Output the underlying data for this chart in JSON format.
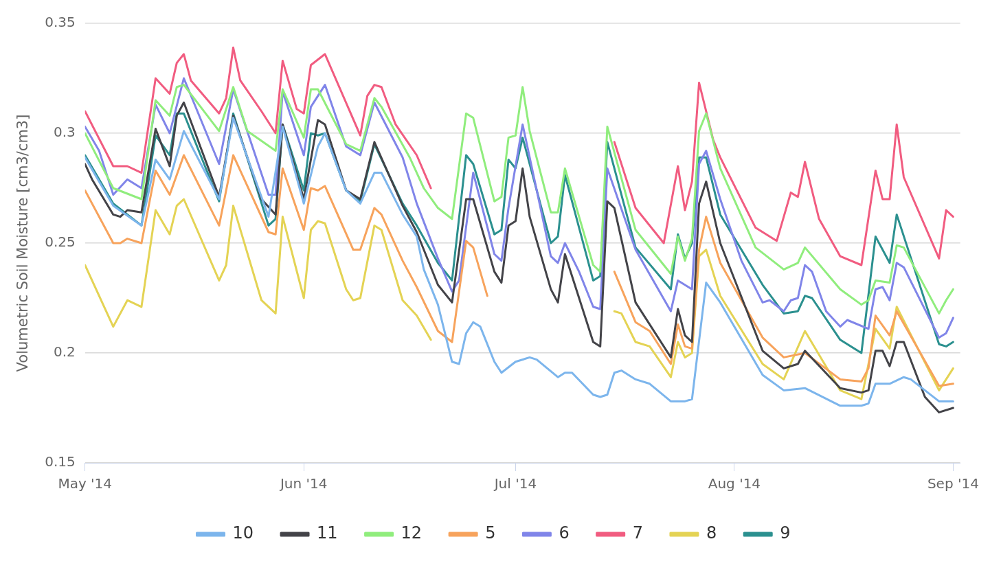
{
  "chart_data": {
    "type": "line",
    "ylabel": "Volumetric Soil Moisture [cm3/cm3]",
    "xlim": [
      "2014-05-01",
      "2014-09-02"
    ],
    "xticks": [
      {
        "value": "2014-05-01",
        "label": "May '14"
      },
      {
        "value": "2014-06-01",
        "label": "Jun '14"
      },
      {
        "value": "2014-07-01",
        "label": "Jul '14"
      },
      {
        "value": "2014-08-01",
        "label": "Aug '14"
      },
      {
        "value": "2014-09-01",
        "label": "Sep '14"
      }
    ],
    "ylim": [
      0.15,
      0.35
    ],
    "yticks": [
      0.15,
      0.2,
      0.25,
      0.3,
      0.35
    ],
    "grid": "y",
    "legend": "bottom",
    "marker": "none",
    "line_style": "solid",
    "series": [
      {
        "name": "10",
        "color": "#7cb5ec",
        "x": [
          "2014-05-01",
          "2014-05-05",
          "2014-05-09",
          "2014-05-11",
          "2014-05-13",
          "2014-05-15",
          "2014-05-20",
          "2014-05-22",
          "2014-05-27",
          "2014-05-29",
          "2014-06-01",
          "2014-06-03",
          "2014-06-04",
          "2014-06-07",
          "2014-06-09",
          "2014-06-11",
          "2014-06-12",
          "2014-06-15",
          "2014-06-17",
          "2014-06-18",
          "2014-06-20",
          "2014-06-22",
          "2014-06-23",
          "2014-06-24",
          "2014-06-25",
          "2014-06-26",
          "2014-06-28",
          "2014-06-29",
          "2014-07-01",
          "2014-07-03",
          "2014-07-04",
          "2014-07-07",
          "2014-07-08",
          "2014-07-09",
          "2014-07-12",
          "2014-07-13",
          "2014-07-14",
          "2014-07-15",
          "2014-07-16",
          "2014-07-18",
          "2014-07-20",
          "2014-07-23",
          "2014-07-25",
          "2014-07-26",
          "2014-07-28",
          "2014-07-30",
          "2014-08-05",
          "2014-08-08",
          "2014-08-11",
          "2014-08-16",
          "2014-08-19",
          "2014-08-20",
          "2014-08-21",
          "2014-08-23",
          "2014-08-25",
          "2014-08-26",
          "2014-08-30",
          "2014-09-01"
        ],
        "values": [
          0.289,
          0.267,
          0.258,
          0.288,
          0.279,
          0.301,
          0.27,
          0.307,
          0.262,
          0.303,
          0.268,
          0.294,
          0.3,
          0.274,
          0.268,
          0.282,
          0.282,
          0.263,
          0.253,
          0.238,
          0.222,
          0.196,
          0.195,
          0.209,
          0.214,
          0.212,
          0.196,
          0.191,
          0.196,
          0.198,
          0.197,
          0.189,
          0.191,
          0.191,
          0.181,
          0.18,
          0.181,
          0.191,
          0.192,
          0.188,
          0.186,
          0.178,
          0.178,
          0.179,
          0.232,
          0.223,
          0.19,
          0.183,
          0.184,
          0.176,
          0.176,
          0.177,
          0.186,
          0.186,
          0.189,
          0.188,
          0.178,
          0.178
        ]
      },
      {
        "name": "11",
        "color": "#434348",
        "x": [
          "2014-05-01",
          "2014-05-02",
          "2014-05-05",
          "2014-05-06",
          "2014-05-07",
          "2014-05-09",
          "2014-05-11",
          "2014-05-13",
          "2014-05-14",
          "2014-05-15",
          "2014-05-20",
          "2014-05-22",
          "2014-05-26",
          "2014-05-28",
          "2014-05-29",
          "2014-06-01",
          "2014-06-03",
          "2014-06-04",
          "2014-06-07",
          "2014-06-09",
          "2014-06-11",
          "2014-06-15",
          "2014-06-17",
          "2014-06-20",
          "2014-06-22",
          "2014-06-24",
          "2014-06-25",
          "2014-06-28",
          "2014-06-29",
          "2014-06-30",
          "2014-07-01",
          "2014-07-02",
          "2014-07-03",
          "2014-07-06",
          "2014-07-07",
          "2014-07-08",
          "2014-07-12",
          "2014-07-13",
          "2014-07-14",
          "2014-07-15",
          "2014-07-18",
          "2014-07-23",
          "2014-07-24",
          "2014-07-25",
          "2014-07-26",
          "2014-07-27",
          "2014-07-28",
          "2014-07-30",
          "2014-08-05",
          "2014-08-08",
          "2014-08-10",
          "2014-08-11",
          "2014-08-16",
          "2014-08-19",
          "2014-08-20",
          "2014-08-21",
          "2014-08-22",
          "2014-08-23",
          "2014-08-24",
          "2014-08-25",
          "2014-08-28",
          "2014-08-30",
          "2014-09-01"
        ],
        "values": [
          0.286,
          0.279,
          0.263,
          0.262,
          0.265,
          0.264,
          0.302,
          0.285,
          0.308,
          0.314,
          0.271,
          0.308,
          0.27,
          0.263,
          0.304,
          0.27,
          0.306,
          0.304,
          0.274,
          0.27,
          0.296,
          0.267,
          0.255,
          0.231,
          0.223,
          0.27,
          0.27,
          0.237,
          0.232,
          0.258,
          0.26,
          0.284,
          0.262,
          0.229,
          0.223,
          0.245,
          0.205,
          0.203,
          0.269,
          0.266,
          0.223,
          0.198,
          0.22,
          0.208,
          0.205,
          0.268,
          0.278,
          0.25,
          0.201,
          0.193,
          0.195,
          0.201,
          0.184,
          0.182,
          0.183,
          0.201,
          0.201,
          0.194,
          0.205,
          0.205,
          0.18,
          0.173,
          0.175
        ]
      },
      {
        "name": "12",
        "color": "#90ed7d",
        "x": [
          "2014-05-01",
          "2014-05-05",
          "2014-05-09",
          "2014-05-11",
          "2014-05-13",
          "2014-05-14",
          "2014-05-15",
          "2014-05-20",
          "2014-05-22",
          "2014-05-24",
          "2014-05-28",
          "2014-05-29",
          "2014-06-01",
          "2014-06-02",
          "2014-06-03",
          "2014-06-07",
          "2014-06-09",
          "2014-06-11",
          "2014-06-12",
          "2014-06-16",
          "2014-06-18",
          "2014-06-20",
          "2014-06-22",
          "2014-06-24",
          "2014-06-25",
          "2014-06-28",
          "2014-06-29",
          "2014-06-30",
          "2014-07-01",
          "2014-07-02",
          "2014-07-03",
          "2014-07-06",
          "2014-07-07",
          "2014-07-08",
          "2014-07-12",
          "2014-07-13",
          "2014-07-14",
          "2014-07-18",
          "2014-07-23",
          "2014-07-24",
          "2014-07-25",
          "2014-07-26",
          "2014-07-27",
          "2014-07-28",
          "2014-07-30",
          "2014-08-04",
          "2014-08-08",
          "2014-08-10",
          "2014-08-11",
          "2014-08-16",
          "2014-08-19",
          "2014-08-20",
          "2014-08-21",
          "2014-08-23",
          "2014-08-24",
          "2014-08-25",
          "2014-08-30",
          "2014-08-31",
          "2014-09-01"
        ],
        "values": [
          0.3,
          0.275,
          0.27,
          0.315,
          0.308,
          0.321,
          0.322,
          0.301,
          0.321,
          0.301,
          0.292,
          0.32,
          0.298,
          0.32,
          0.32,
          0.295,
          0.292,
          0.316,
          0.312,
          0.289,
          0.275,
          0.266,
          0.261,
          0.309,
          0.307,
          0.269,
          0.271,
          0.298,
          0.299,
          0.321,
          0.301,
          0.264,
          0.264,
          0.284,
          0.24,
          0.237,
          0.303,
          0.256,
          0.236,
          0.253,
          0.242,
          0.252,
          0.301,
          0.309,
          0.284,
          0.248,
          0.238,
          0.241,
          0.248,
          0.229,
          0.222,
          0.224,
          0.233,
          0.232,
          0.249,
          0.248,
          0.218,
          0.224,
          0.229
        ]
      },
      {
        "name": "5",
        "color": "#f7a35c",
        "x": [
          "2014-05-01",
          "2014-05-05",
          "2014-05-06",
          "2014-05-07",
          "2014-05-09",
          "2014-05-11",
          "2014-05-13",
          "2014-05-15",
          "2014-05-20",
          "2014-05-22",
          "2014-05-27",
          "2014-05-28",
          "2014-05-29",
          "2014-06-01",
          "2014-06-02",
          "2014-06-03",
          "2014-06-04",
          "2014-06-08",
          "2014-06-09",
          "2014-06-11",
          "2014-06-12",
          "2014-06-15",
          "2014-06-17",
          "2014-06-20",
          "2014-06-22",
          "2014-06-24",
          "2014-06-25",
          "2014-06-27",
          "2014-07-06",
          "2014-07-15",
          "2014-07-18",
          "2014-07-20",
          "2014-07-23",
          "2014-07-24",
          "2014-07-25",
          "2014-07-26",
          "2014-07-27",
          "2014-07-28",
          "2014-07-30",
          "2014-08-05",
          "2014-08-08",
          "2014-08-11",
          "2014-08-16",
          "2014-08-19",
          "2014-08-20",
          "2014-08-21",
          "2014-08-23",
          "2014-08-24",
          "2014-08-30",
          "2014-09-01"
        ],
        "values": [
          0.274,
          0.25,
          0.25,
          0.252,
          0.25,
          0.283,
          0.272,
          0.29,
          0.258,
          0.29,
          0.255,
          0.254,
          0.284,
          0.256,
          0.275,
          0.274,
          0.276,
          0.247,
          0.247,
          0.266,
          0.263,
          0.242,
          0.23,
          0.21,
          0.205,
          0.251,
          0.248,
          0.226,
          null,
          0.237,
          0.214,
          0.21,
          0.195,
          0.213,
          0.203,
          0.202,
          0.247,
          0.262,
          0.241,
          0.207,
          0.198,
          0.2,
          0.188,
          0.187,
          0.193,
          0.217,
          0.208,
          0.219,
          0.185,
          0.186
        ]
      },
      {
        "name": "6",
        "color": "#8085e9",
        "x": [
          "2014-05-01",
          "2014-05-03",
          "2014-05-05",
          "2014-05-07",
          "2014-05-09",
          "2014-05-11",
          "2014-05-13",
          "2014-05-15",
          "2014-05-20",
          "2014-05-22",
          "2014-05-27",
          "2014-05-28",
          "2014-05-29",
          "2014-06-01",
          "2014-06-02",
          "2014-06-04",
          "2014-06-07",
          "2014-06-09",
          "2014-06-11",
          "2014-06-15",
          "2014-06-17",
          "2014-06-20",
          "2014-06-22",
          "2014-06-23",
          "2014-06-25",
          "2014-06-28",
          "2014-06-29",
          "2014-06-30",
          "2014-07-02",
          "2014-07-06",
          "2014-07-07",
          "2014-07-08",
          "2014-07-10",
          "2014-07-12",
          "2014-07-13",
          "2014-07-14",
          "2014-07-18",
          "2014-07-23",
          "2014-07-24",
          "2014-07-26",
          "2014-07-27",
          "2014-07-28",
          "2014-07-30",
          "2014-08-02",
          "2014-08-05",
          "2014-08-06",
          "2014-08-08",
          "2014-08-09",
          "2014-08-10",
          "2014-08-11",
          "2014-08-12",
          "2014-08-14",
          "2014-08-16",
          "2014-08-17",
          "2014-08-20",
          "2014-08-21",
          "2014-08-22",
          "2014-08-23",
          "2014-08-24",
          "2014-08-25",
          "2014-08-30",
          "2014-08-31",
          "2014-09-01"
        ],
        "values": [
          0.303,
          0.292,
          0.272,
          0.279,
          0.275,
          0.313,
          0.3,
          0.325,
          0.286,
          0.32,
          0.272,
          0.272,
          0.319,
          0.29,
          0.312,
          0.322,
          0.294,
          0.29,
          0.314,
          0.289,
          0.268,
          0.243,
          0.228,
          0.233,
          0.282,
          0.245,
          0.242,
          0.266,
          0.304,
          0.244,
          0.241,
          0.25,
          0.237,
          0.221,
          0.22,
          0.284,
          0.247,
          0.219,
          0.233,
          0.229,
          0.286,
          0.292,
          0.27,
          0.242,
          0.223,
          0.224,
          0.219,
          0.224,
          0.225,
          0.24,
          0.237,
          0.219,
          0.212,
          0.215,
          0.211,
          0.229,
          0.23,
          0.224,
          0.241,
          0.239,
          0.207,
          0.209,
          0.216
        ]
      },
      {
        "name": "7",
        "color": "#f15c80",
        "x": [
          "2014-05-01",
          "2014-05-05",
          "2014-05-07",
          "2014-05-09",
          "2014-05-11",
          "2014-05-13",
          "2014-05-14",
          "2014-05-15",
          "2014-05-16",
          "2014-05-20",
          "2014-05-21",
          "2014-05-22",
          "2014-05-23",
          "2014-05-26",
          "2014-05-28",
          "2014-05-29",
          "2014-05-31",
          "2014-06-01",
          "2014-06-02",
          "2014-06-04",
          "2014-06-09",
          "2014-06-10",
          "2014-06-11",
          "2014-06-12",
          "2014-06-14",
          "2014-06-17",
          "2014-06-19",
          "2014-07-02",
          "2014-07-15",
          "2014-07-18",
          "2014-07-22",
          "2014-07-24",
          "2014-07-25",
          "2014-07-26",
          "2014-07-27",
          "2014-07-29",
          "2014-07-30",
          "2014-08-04",
          "2014-08-07",
          "2014-08-09",
          "2014-08-10",
          "2014-08-11",
          "2014-08-13",
          "2014-08-16",
          "2014-08-19",
          "2014-08-21",
          "2014-08-22",
          "2014-08-23",
          "2014-08-24",
          "2014-08-25",
          "2014-08-30",
          "2014-08-31",
          "2014-09-01"
        ],
        "values": [
          0.31,
          0.285,
          0.285,
          0.282,
          0.325,
          0.318,
          0.332,
          0.336,
          0.324,
          0.309,
          0.316,
          0.339,
          0.324,
          0.31,
          0.3,
          0.333,
          0.311,
          0.309,
          0.331,
          0.336,
          0.299,
          0.317,
          0.322,
          0.321,
          0.304,
          0.29,
          0.275,
          null,
          0.296,
          0.266,
          0.25,
          0.285,
          0.265,
          0.278,
          0.323,
          0.297,
          0.289,
          0.257,
          0.251,
          0.273,
          0.271,
          0.287,
          0.261,
          0.244,
          0.24,
          0.283,
          0.27,
          0.27,
          0.304,
          0.28,
          0.243,
          0.265,
          0.262
        ]
      },
      {
        "name": "8",
        "color": "#e4d354",
        "x": [
          "2014-05-01",
          "2014-05-05",
          "2014-05-07",
          "2014-05-09",
          "2014-05-11",
          "2014-05-13",
          "2014-05-14",
          "2014-05-15",
          "2014-05-20",
          "2014-05-21",
          "2014-05-22",
          "2014-05-26",
          "2014-05-28",
          "2014-05-29",
          "2014-06-01",
          "2014-06-02",
          "2014-06-03",
          "2014-06-04",
          "2014-06-07",
          "2014-06-08",
          "2014-06-09",
          "2014-06-11",
          "2014-06-12",
          "2014-06-15",
          "2014-06-17",
          "2014-06-19",
          "2014-07-02",
          "2014-07-15",
          "2014-07-16",
          "2014-07-18",
          "2014-07-20",
          "2014-07-23",
          "2014-07-24",
          "2014-07-25",
          "2014-07-26",
          "2014-07-27",
          "2014-07-28",
          "2014-07-30",
          "2014-08-05",
          "2014-08-08",
          "2014-08-11",
          "2014-08-16",
          "2014-08-19",
          "2014-08-21",
          "2014-08-23",
          "2014-08-24",
          "2014-08-30",
          "2014-09-01"
        ],
        "values": [
          0.24,
          0.212,
          0.224,
          0.221,
          0.265,
          0.254,
          0.267,
          0.27,
          0.233,
          0.24,
          0.267,
          0.224,
          0.218,
          0.262,
          0.225,
          0.256,
          0.26,
          0.259,
          0.229,
          0.224,
          0.225,
          0.258,
          0.256,
          0.224,
          0.217,
          0.206,
          null,
          0.219,
          0.218,
          0.205,
          0.203,
          0.189,
          0.205,
          0.198,
          0.2,
          0.244,
          0.247,
          0.226,
          0.195,
          0.188,
          0.21,
          0.183,
          0.179,
          0.211,
          0.202,
          0.221,
          0.183,
          0.193
        ]
      },
      {
        "name": "9",
        "color": "#2b908f",
        "x": [
          "2014-05-01",
          "2014-05-05",
          "2014-05-09",
          "2014-05-11",
          "2014-05-13",
          "2014-05-14",
          "2014-05-15",
          "2014-05-20",
          "2014-05-22",
          "2014-05-27",
          "2014-05-28",
          "2014-05-29",
          "2014-06-01",
          "2014-06-02",
          "2014-06-03",
          "2014-06-04",
          "2014-06-07",
          "2014-06-09",
          "2014-06-11",
          "2014-06-15",
          "2014-06-17",
          "2014-06-20",
          "2014-06-22",
          "2014-06-24",
          "2014-06-25",
          "2014-06-28",
          "2014-06-29",
          "2014-06-30",
          "2014-07-01",
          "2014-07-02",
          "2014-07-06",
          "2014-07-07",
          "2014-07-08",
          "2014-07-12",
          "2014-07-13",
          "2014-07-14",
          "2014-07-18",
          "2014-07-23",
          "2014-07-24",
          "2014-07-25",
          "2014-07-26",
          "2014-07-27",
          "2014-07-28",
          "2014-07-30",
          "2014-08-05",
          "2014-08-08",
          "2014-08-10",
          "2014-08-11",
          "2014-08-12",
          "2014-08-16",
          "2014-08-19",
          "2014-08-21",
          "2014-08-23",
          "2014-08-24",
          "2014-08-30",
          "2014-08-31",
          "2014-09-01"
        ],
        "values": [
          0.29,
          0.268,
          0.258,
          0.299,
          0.29,
          0.309,
          0.309,
          0.269,
          0.309,
          0.258,
          0.261,
          0.304,
          0.274,
          0.3,
          0.299,
          0.3,
          0.274,
          0.269,
          0.295,
          0.268,
          0.258,
          0.241,
          0.233,
          0.29,
          0.286,
          0.254,
          0.256,
          0.288,
          0.284,
          0.298,
          0.25,
          0.253,
          0.281,
          0.233,
          0.235,
          0.296,
          0.248,
          0.229,
          0.254,
          0.243,
          0.25,
          0.289,
          0.289,
          0.263,
          0.231,
          0.218,
          0.219,
          0.226,
          0.225,
          0.206,
          0.2,
          0.253,
          0.241,
          0.263,
          0.204,
          0.203,
          0.205
        ]
      }
    ]
  }
}
